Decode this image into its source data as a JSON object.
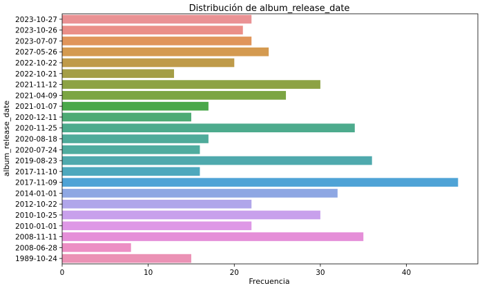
{
  "chart_data": {
    "type": "bar",
    "orientation": "horizontal",
    "title": "Distribución de album_release_date",
    "xlabel": "Frecuencia",
    "ylabel": "album_release_date",
    "xlim": [
      0,
      48.3
    ],
    "xticks": [
      0,
      10,
      20,
      30,
      40
    ],
    "grid": false,
    "categories": [
      "2023-10-27",
      "2023-10-26",
      "2023-07-07",
      "2027-05-26",
      "2022-10-22",
      "2022-10-21",
      "2021-11-12",
      "2021-04-09",
      "2021-01-07",
      "2020-12-11",
      "2020-11-25",
      "2020-08-18",
      "2020-07-24",
      "2019-08-23",
      "2017-11-10",
      "2017-11-09",
      "2014-01-01",
      "2012-10-22",
      "2010-10-25",
      "2010-01-01",
      "2008-11-11",
      "2008-06-28",
      "1989-10-24"
    ],
    "values": [
      22,
      21,
      22,
      24,
      20,
      13,
      30,
      26,
      17,
      15,
      34,
      17,
      16,
      36,
      16,
      46,
      32,
      22,
      30,
      22,
      35,
      8,
      15
    ],
    "colors": [
      "#ea9294",
      "#ea8f88",
      "#e0955a",
      "#d49a50",
      "#bf9b4a",
      "#a49e46",
      "#8da244",
      "#7ca543",
      "#4aa84a",
      "#4daa74",
      "#4dab8d",
      "#4fab9a",
      "#4fac9f",
      "#4fa9ad",
      "#4ea8bd",
      "#4fa3d6",
      "#8ea7e3",
      "#b0a6ea",
      "#c8a0ec",
      "#de98e6",
      "#e58fd8",
      "#ec8fc4",
      "#eb92b5"
    ]
  }
}
